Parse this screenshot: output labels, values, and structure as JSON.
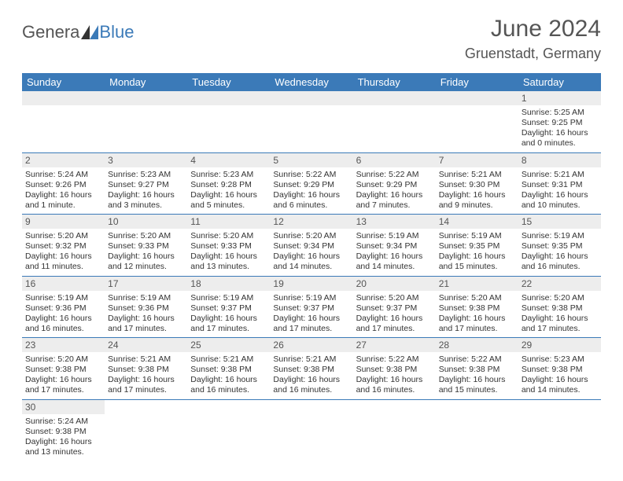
{
  "logo": {
    "part1": "Genera",
    "part2": "Blue"
  },
  "title": "June 2024",
  "location": "Gruenstadt, Germany",
  "colors": {
    "header_bg": "#3b7ab8",
    "header_fg": "#ffffff",
    "daynum_bg": "#ededed",
    "cell_border": "#3b7ab8",
    "title_color": "#555555",
    "text_color": "#333333",
    "logo_gray": "#555555",
    "logo_blue": "#3b7ab8"
  },
  "day_headers": [
    "Sunday",
    "Monday",
    "Tuesday",
    "Wednesday",
    "Thursday",
    "Friday",
    "Saturday"
  ],
  "weeks": [
    [
      null,
      null,
      null,
      null,
      null,
      null,
      {
        "n": "1",
        "sr": "5:25 AM",
        "ss": "9:25 PM",
        "dl": "16 hours and 0 minutes."
      }
    ],
    [
      {
        "n": "2",
        "sr": "5:24 AM",
        "ss": "9:26 PM",
        "dl": "16 hours and 1 minute."
      },
      {
        "n": "3",
        "sr": "5:23 AM",
        "ss": "9:27 PM",
        "dl": "16 hours and 3 minutes."
      },
      {
        "n": "4",
        "sr": "5:23 AM",
        "ss": "9:28 PM",
        "dl": "16 hours and 5 minutes."
      },
      {
        "n": "5",
        "sr": "5:22 AM",
        "ss": "9:29 PM",
        "dl": "16 hours and 6 minutes."
      },
      {
        "n": "6",
        "sr": "5:22 AM",
        "ss": "9:29 PM",
        "dl": "16 hours and 7 minutes."
      },
      {
        "n": "7",
        "sr": "5:21 AM",
        "ss": "9:30 PM",
        "dl": "16 hours and 9 minutes."
      },
      {
        "n": "8",
        "sr": "5:21 AM",
        "ss": "9:31 PM",
        "dl": "16 hours and 10 minutes."
      }
    ],
    [
      {
        "n": "9",
        "sr": "5:20 AM",
        "ss": "9:32 PM",
        "dl": "16 hours and 11 minutes."
      },
      {
        "n": "10",
        "sr": "5:20 AM",
        "ss": "9:33 PM",
        "dl": "16 hours and 12 minutes."
      },
      {
        "n": "11",
        "sr": "5:20 AM",
        "ss": "9:33 PM",
        "dl": "16 hours and 13 minutes."
      },
      {
        "n": "12",
        "sr": "5:20 AM",
        "ss": "9:34 PM",
        "dl": "16 hours and 14 minutes."
      },
      {
        "n": "13",
        "sr": "5:19 AM",
        "ss": "9:34 PM",
        "dl": "16 hours and 14 minutes."
      },
      {
        "n": "14",
        "sr": "5:19 AM",
        "ss": "9:35 PM",
        "dl": "16 hours and 15 minutes."
      },
      {
        "n": "15",
        "sr": "5:19 AM",
        "ss": "9:35 PM",
        "dl": "16 hours and 16 minutes."
      }
    ],
    [
      {
        "n": "16",
        "sr": "5:19 AM",
        "ss": "9:36 PM",
        "dl": "16 hours and 16 minutes."
      },
      {
        "n": "17",
        "sr": "5:19 AM",
        "ss": "9:36 PM",
        "dl": "16 hours and 17 minutes."
      },
      {
        "n": "18",
        "sr": "5:19 AM",
        "ss": "9:37 PM",
        "dl": "16 hours and 17 minutes."
      },
      {
        "n": "19",
        "sr": "5:19 AM",
        "ss": "9:37 PM",
        "dl": "16 hours and 17 minutes."
      },
      {
        "n": "20",
        "sr": "5:20 AM",
        "ss": "9:37 PM",
        "dl": "16 hours and 17 minutes."
      },
      {
        "n": "21",
        "sr": "5:20 AM",
        "ss": "9:38 PM",
        "dl": "16 hours and 17 minutes."
      },
      {
        "n": "22",
        "sr": "5:20 AM",
        "ss": "9:38 PM",
        "dl": "16 hours and 17 minutes."
      }
    ],
    [
      {
        "n": "23",
        "sr": "5:20 AM",
        "ss": "9:38 PM",
        "dl": "16 hours and 17 minutes."
      },
      {
        "n": "24",
        "sr": "5:21 AM",
        "ss": "9:38 PM",
        "dl": "16 hours and 17 minutes."
      },
      {
        "n": "25",
        "sr": "5:21 AM",
        "ss": "9:38 PM",
        "dl": "16 hours and 16 minutes."
      },
      {
        "n": "26",
        "sr": "5:21 AM",
        "ss": "9:38 PM",
        "dl": "16 hours and 16 minutes."
      },
      {
        "n": "27",
        "sr": "5:22 AM",
        "ss": "9:38 PM",
        "dl": "16 hours and 16 minutes."
      },
      {
        "n": "28",
        "sr": "5:22 AM",
        "ss": "9:38 PM",
        "dl": "16 hours and 15 minutes."
      },
      {
        "n": "29",
        "sr": "5:23 AM",
        "ss": "9:38 PM",
        "dl": "16 hours and 14 minutes."
      }
    ],
    [
      {
        "n": "30",
        "sr": "5:24 AM",
        "ss": "9:38 PM",
        "dl": "16 hours and 13 minutes."
      },
      null,
      null,
      null,
      null,
      null,
      null
    ]
  ],
  "labels": {
    "sunrise": "Sunrise:",
    "sunset": "Sunset:",
    "daylight": "Daylight:"
  }
}
